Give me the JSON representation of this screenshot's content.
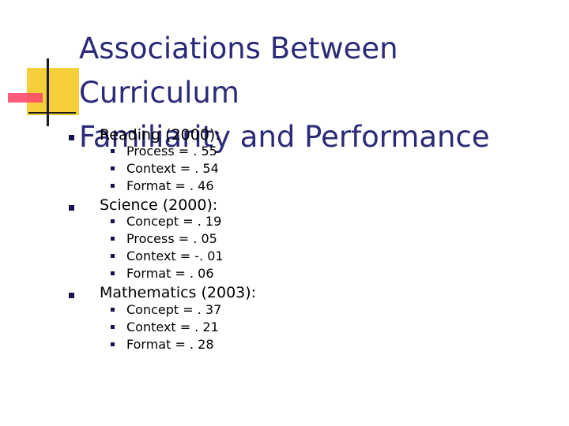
{
  "title_line1": "Associations Between Curriculum",
  "title_line2": "Familiarity and Performance",
  "reading": {
    "heading": "Reading (2000):",
    "items": [
      "Process = . 55",
      "Context = . 54",
      "Format = . 46"
    ]
  },
  "science": {
    "heading": "Science (2000):",
    "items": [
      "Concept = . 19",
      "Process = . 05",
      "Context = -. 01",
      "Format = . 06"
    ]
  },
  "mathematics": {
    "heading": "Mathematics (2003):",
    "items": [
      "Concept = . 37",
      "Context = . 21",
      "Format = . 28"
    ]
  },
  "colors": {
    "title": "#2a2a78",
    "bullet": "#141450",
    "accent_yellow": "#f5cf3a",
    "accent_red": "#ff4a6c"
  }
}
